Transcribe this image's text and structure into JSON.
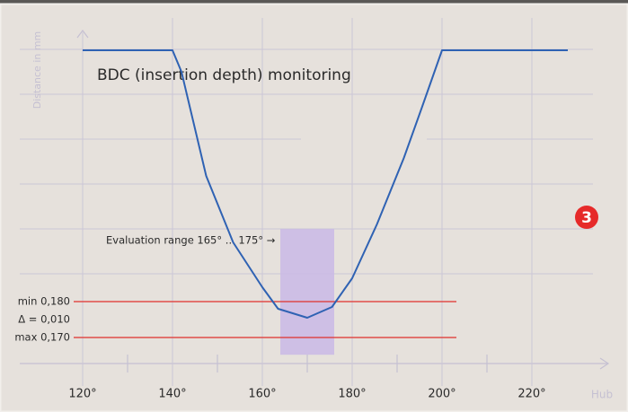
{
  "chart_data": {
    "type": "line",
    "title": "BDC (insertion depth) monitoring",
    "y_label": "Distance in mm",
    "x_label": "Hub",
    "x": [
      120,
      140,
      142,
      147.5,
      153.5,
      160,
      163.5,
      170,
      175.5,
      180,
      185.5,
      191.5,
      195.5,
      200,
      228
    ],
    "series": [
      {
        "name": "Distance",
        "color": "#2f62b3",
        "values": [
          0.25,
          0.25,
          0.244,
          0.215,
          0.1965,
          0.184,
          0.178,
          0.1755,
          0.1785,
          0.1865,
          0.2015,
          0.22,
          0.234,
          0.25,
          0.25
        ]
      }
    ],
    "xlim": [
      114,
      228
    ],
    "xticks": [
      {
        "value": 120,
        "label": "120°"
      },
      {
        "value": 140,
        "label": "140°"
      },
      {
        "value": 160,
        "label": "160°"
      },
      {
        "value": 180,
        "label": "180°"
      },
      {
        "value": 200,
        "label": "200°"
      },
      {
        "value": 220,
        "label": "220°"
      }
    ],
    "xminorticks": [
      130,
      150,
      170,
      190,
      210
    ],
    "ylim": [
      0.155,
      0.255
    ],
    "grid": true,
    "limits": [
      {
        "label": "min 0,180",
        "value": 0.18,
        "color": "#e0312c"
      },
      {
        "label": "max 0,170",
        "value": 0.17,
        "color": "#e0312c"
      }
    ],
    "delta": {
      "label": "Δ = 0,010",
      "value": 0.01
    },
    "evaluation_range": {
      "label": "Evaluation range 165° ... 175° →",
      "x": [
        164,
        176
      ],
      "y": [
        0.1652,
        0.2002
      ],
      "color": "#c9b9e6"
    },
    "badge": "3"
  }
}
